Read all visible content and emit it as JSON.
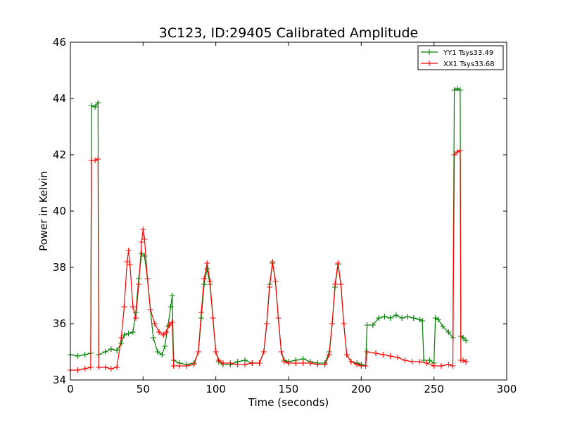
{
  "chart_data": {
    "type": "line",
    "title": "3C123, ID:29405 Calibrated Amplitude",
    "xlabel": "Time (seconds)",
    "ylabel": "Power in Kelvin",
    "xlim": [
      0,
      300
    ],
    "ylim": [
      34,
      46
    ],
    "xticks": [
      "0",
      "50",
      "100",
      "150",
      "200",
      "250",
      "300"
    ],
    "yticks": [
      "34",
      "36",
      "38",
      "40",
      "42",
      "44",
      "46"
    ],
    "grid": false,
    "legend": {
      "placement": "top-right"
    },
    "series": [
      {
        "name": "YY1 Tsys33.49",
        "color": "#008000",
        "marker": "plus",
        "points": [
          [
            0,
            34.9
          ],
          [
            5,
            34.85
          ],
          [
            10,
            34.9
          ],
          [
            14,
            34.95
          ],
          [
            14.5,
            43.75
          ],
          [
            17,
            43.7
          ],
          [
            19,
            43.85
          ],
          [
            19.5,
            34.9
          ],
          [
            24,
            35.0
          ],
          [
            28,
            35.1
          ],
          [
            32,
            35.05
          ],
          [
            35,
            35.3
          ],
          [
            37,
            35.6
          ],
          [
            40,
            35.65
          ],
          [
            43,
            35.7
          ],
          [
            45,
            36.4
          ],
          [
            47,
            37.6
          ],
          [
            49,
            38.5
          ],
          [
            51,
            38.4
          ],
          [
            53,
            37.6
          ],
          [
            55,
            36.5
          ],
          [
            57,
            35.5
          ],
          [
            60,
            35.0
          ],
          [
            63,
            34.9
          ],
          [
            65,
            35.2
          ],
          [
            67,
            35.9
          ],
          [
            69,
            36.6
          ],
          [
            70,
            37.0
          ],
          [
            71,
            34.7
          ],
          [
            75,
            34.6
          ],
          [
            80,
            34.55
          ],
          [
            85,
            34.6
          ],
          [
            88,
            35.0
          ],
          [
            90,
            36.2
          ],
          [
            92,
            37.4
          ],
          [
            94,
            37.95
          ],
          [
            96,
            37.4
          ],
          [
            98,
            36.2
          ],
          [
            100,
            35.0
          ],
          [
            102,
            34.65
          ],
          [
            105,
            34.55
          ],
          [
            110,
            34.55
          ],
          [
            115,
            34.65
          ],
          [
            120,
            34.7
          ],
          [
            125,
            34.6
          ],
          [
            130,
            34.6
          ],
          [
            133,
            35.0
          ],
          [
            135,
            36.0
          ],
          [
            137,
            37.4
          ],
          [
            139,
            38.15
          ],
          [
            141,
            37.5
          ],
          [
            143,
            36.2
          ],
          [
            145,
            35.0
          ],
          [
            147,
            34.7
          ],
          [
            150,
            34.65
          ],
          [
            155,
            34.7
          ],
          [
            160,
            34.75
          ],
          [
            165,
            34.65
          ],
          [
            170,
            34.6
          ],
          [
            175,
            34.6
          ],
          [
            178,
            35.0
          ],
          [
            180,
            36.0
          ],
          [
            182,
            37.3
          ],
          [
            184,
            38.1
          ],
          [
            186,
            37.4
          ],
          [
            188,
            36.0
          ],
          [
            190,
            34.9
          ],
          [
            193,
            34.65
          ],
          [
            197,
            34.6
          ],
          [
            200,
            34.55
          ],
          [
            203,
            34.5
          ],
          [
            204,
            35.95
          ],
          [
            208,
            35.95
          ],
          [
            212,
            36.2
          ],
          [
            216,
            36.25
          ],
          [
            220,
            36.2
          ],
          [
            224,
            36.3
          ],
          [
            228,
            36.2
          ],
          [
            232,
            36.25
          ],
          [
            236,
            36.2
          ],
          [
            240,
            36.15
          ],
          [
            242,
            36.1
          ],
          [
            243,
            34.7
          ],
          [
            247,
            34.7
          ],
          [
            250,
            34.6
          ],
          [
            251,
            36.2
          ],
          [
            253,
            36.15
          ],
          [
            256,
            35.9
          ],
          [
            260,
            35.7
          ],
          [
            263,
            35.5
          ],
          [
            264,
            44.3
          ],
          [
            266,
            44.35
          ],
          [
            268,
            44.3
          ],
          [
            268.5,
            35.55
          ],
          [
            270,
            35.5
          ],
          [
            272,
            35.4
          ]
        ]
      },
      {
        "name": "XX1 Tsys33.68",
        "color": "#ff0000",
        "marker": "plus",
        "points": [
          [
            0,
            34.35
          ],
          [
            5,
            34.35
          ],
          [
            10,
            34.4
          ],
          [
            14,
            34.45
          ],
          [
            14.5,
            41.8
          ],
          [
            17,
            41.8
          ],
          [
            19,
            41.85
          ],
          [
            19.5,
            34.45
          ],
          [
            24,
            34.45
          ],
          [
            28,
            34.4
          ],
          [
            32,
            34.45
          ],
          [
            35,
            35.5
          ],
          [
            37,
            36.6
          ],
          [
            39,
            38.2
          ],
          [
            40,
            38.6
          ],
          [
            41,
            38.1
          ],
          [
            43,
            36.6
          ],
          [
            45,
            36.2
          ],
          [
            47,
            37.4
          ],
          [
            49,
            38.9
          ],
          [
            50,
            39.35
          ],
          [
            51,
            39.0
          ],
          [
            53,
            37.6
          ],
          [
            55,
            36.5
          ],
          [
            58,
            36.0
          ],
          [
            61,
            35.7
          ],
          [
            64,
            35.6
          ],
          [
            66,
            35.7
          ],
          [
            68,
            35.95
          ],
          [
            70,
            36.05
          ],
          [
            71,
            34.5
          ],
          [
            75,
            34.5
          ],
          [
            80,
            34.5
          ],
          [
            85,
            34.55
          ],
          [
            88,
            35.0
          ],
          [
            90,
            36.4
          ],
          [
            92,
            37.6
          ],
          [
            94,
            38.15
          ],
          [
            96,
            37.5
          ],
          [
            98,
            36.2
          ],
          [
            100,
            35.0
          ],
          [
            102,
            34.7
          ],
          [
            105,
            34.6
          ],
          [
            110,
            34.6
          ],
          [
            115,
            34.55
          ],
          [
            120,
            34.55
          ],
          [
            125,
            34.6
          ],
          [
            130,
            34.6
          ],
          [
            133,
            35.0
          ],
          [
            135,
            36.0
          ],
          [
            137,
            37.3
          ],
          [
            139,
            38.2
          ],
          [
            141,
            37.5
          ],
          [
            143,
            36.2
          ],
          [
            145,
            35.0
          ],
          [
            147,
            34.65
          ],
          [
            150,
            34.6
          ],
          [
            155,
            34.6
          ],
          [
            160,
            34.6
          ],
          [
            165,
            34.6
          ],
          [
            170,
            34.55
          ],
          [
            175,
            34.55
          ],
          [
            178,
            34.9
          ],
          [
            180,
            36.0
          ],
          [
            182,
            37.4
          ],
          [
            184,
            38.15
          ],
          [
            186,
            37.4
          ],
          [
            188,
            36.0
          ],
          [
            190,
            34.9
          ],
          [
            193,
            34.65
          ],
          [
            197,
            34.55
          ],
          [
            200,
            34.5
          ],
          [
            203,
            34.5
          ],
          [
            204,
            35.0
          ],
          [
            210,
            34.95
          ],
          [
            215,
            34.9
          ],
          [
            220,
            34.85
          ],
          [
            225,
            34.8
          ],
          [
            230,
            34.7
          ],
          [
            235,
            34.65
          ],
          [
            240,
            34.65
          ],
          [
            245,
            34.6
          ],
          [
            250,
            34.5
          ],
          [
            255,
            34.5
          ],
          [
            260,
            34.55
          ],
          [
            263,
            34.5
          ],
          [
            264,
            42.0
          ],
          [
            266,
            42.1
          ],
          [
            268,
            42.15
          ],
          [
            268.5,
            34.7
          ],
          [
            270,
            34.7
          ],
          [
            272,
            34.65
          ]
        ]
      }
    ]
  }
}
